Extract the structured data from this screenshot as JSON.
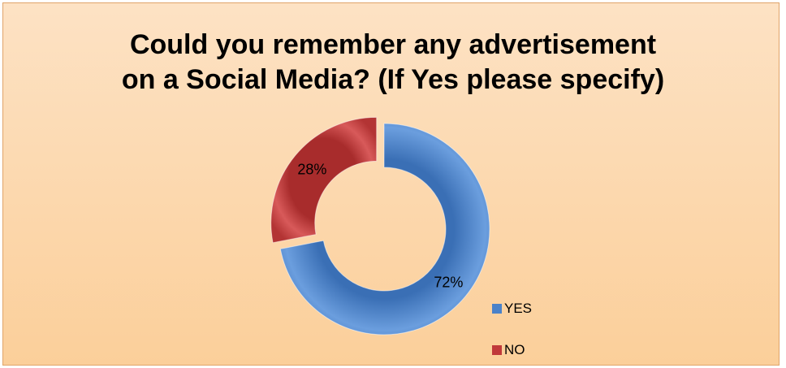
{
  "chart_data": {
    "type": "pie",
    "donut": true,
    "title_lines": [
      "Could you remember any advertisement",
      "on a Social Media? (If Yes please specify)"
    ],
    "categories": [
      "YES",
      "NO"
    ],
    "values": [
      72,
      28
    ],
    "data_labels": [
      "72%",
      "28%"
    ],
    "colors": [
      "#4a82c9",
      "#c0393a"
    ],
    "legend_position": "bottom-right",
    "exploded_slice": "NO"
  }
}
